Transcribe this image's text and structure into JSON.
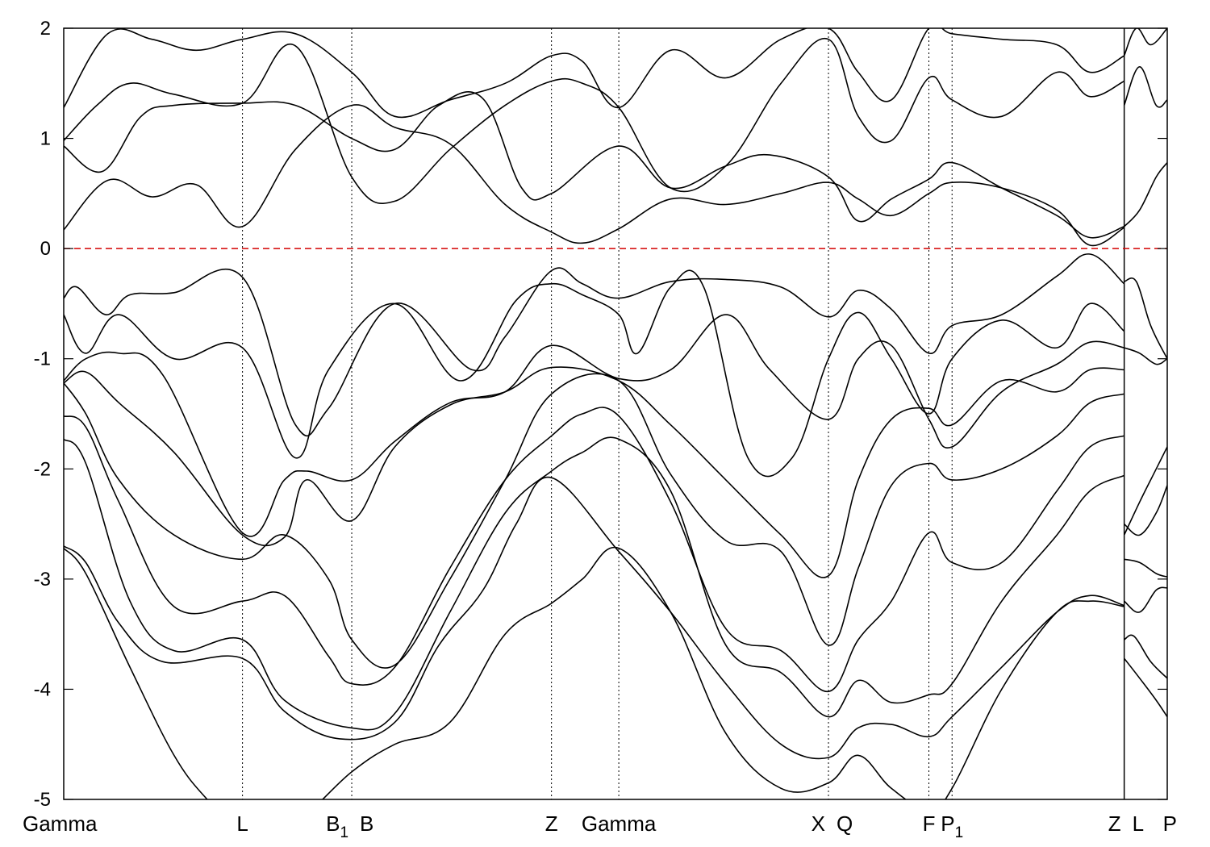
{
  "chart_data": {
    "type": "line",
    "title": "",
    "xlabel": "",
    "ylabel": "",
    "ylim": [
      -5,
      2
    ],
    "yticks": [
      2,
      1,
      0,
      -1,
      -2,
      -3,
      -4,
      -5
    ],
    "grid": false,
    "legend": "none",
    "colors": {
      "bands": "#000000",
      "fermi_level": "#d40000",
      "kpoint_lines": "#000000"
    },
    "kpoints": [
      {
        "label": "Gamma",
        "sub": "",
        "x": 0.0
      },
      {
        "label": "L",
        "sub": "",
        "x": 0.162
      },
      {
        "label": "B",
        "sub": "1",
        "x": 0.261
      },
      {
        "label": "B",
        "sub": "",
        "x": 0.261
      },
      {
        "label": "Z",
        "sub": "",
        "x": 0.442
      },
      {
        "label": "Gamma",
        "sub": "",
        "x": 0.503
      },
      {
        "label": "X",
        "sub": "",
        "x": 0.693
      },
      {
        "label": "Q",
        "sub": "",
        "x": 0.693
      },
      {
        "label": "F",
        "sub": "",
        "x": 0.784
      },
      {
        "label": "P",
        "sub": "1",
        "x": 0.805
      },
      {
        "label": "Z",
        "sub": "",
        "x": 0.961
      },
      {
        "label": "L",
        "sub": "",
        "x": 0.961
      },
      {
        "label": "P",
        "sub": "",
        "x": 1.0
      }
    ],
    "kpath_lines": [
      0.162,
      0.261,
      0.442,
      0.503,
      0.693,
      0.784,
      0.805
    ],
    "discontinuity": 0.961,
    "fermi_level": 0,
    "series": [
      {
        "x": [
          0,
          0.04,
          0.08,
          0.12,
          0.162,
          0.21,
          0.261,
          0.3,
          0.35,
          0.4,
          0.442,
          0.47,
          0.503,
          0.55,
          0.6,
          0.65,
          0.693,
          0.72,
          0.75,
          0.784,
          0.805,
          0.85,
          0.9,
          0.93,
          0.961
        ],
        "y": [
          1.28,
          1.95,
          1.9,
          1.8,
          1.9,
          1.95,
          1.6,
          1.2,
          1.35,
          1.5,
          1.75,
          1.7,
          1.28,
          1.8,
          1.55,
          1.9,
          2.0,
          1.6,
          1.35,
          2.0,
          1.95,
          1.9,
          1.85,
          1.6,
          1.75
        ]
      },
      {
        "x": [
          0,
          0.03,
          0.06,
          0.1,
          0.162,
          0.21,
          0.261,
          0.3,
          0.35,
          0.4,
          0.442,
          0.47,
          0.503,
          0.55,
          0.6,
          0.65,
          0.693,
          0.72,
          0.75,
          0.784,
          0.805,
          0.85,
          0.9,
          0.93,
          0.961
        ],
        "y": [
          0.98,
          1.3,
          1.5,
          1.4,
          1.32,
          1.84,
          0.65,
          0.43,
          0.9,
          1.3,
          1.52,
          1.5,
          1.28,
          0.55,
          0.75,
          1.5,
          1.9,
          1.2,
          0.98,
          1.55,
          1.35,
          1.2,
          1.6,
          1.38,
          1.52
        ]
      },
      {
        "x": [
          0,
          0.035,
          0.07,
          0.1,
          0.162,
          0.21,
          0.261,
          0.3,
          0.34,
          0.38,
          0.415,
          0.442,
          0.503,
          0.55,
          0.6,
          0.64,
          0.693,
          0.72,
          0.75,
          0.784,
          0.805,
          0.85,
          0.9,
          0.93,
          0.961
        ],
        "y": [
          0.93,
          0.7,
          1.2,
          1.3,
          1.32,
          1.3,
          1.0,
          0.9,
          1.3,
          1.36,
          0.55,
          0.5,
          0.93,
          0.55,
          0.75,
          0.85,
          0.65,
          0.25,
          0.45,
          0.63,
          0.78,
          0.55,
          0.3,
          0.1,
          0.2
        ]
      },
      {
        "x": [
          0,
          0.04,
          0.08,
          0.12,
          0.162,
          0.21,
          0.261,
          0.3,
          0.35,
          0.4,
          0.442,
          0.47,
          0.503,
          0.55,
          0.6,
          0.65,
          0.693,
          0.72,
          0.75,
          0.784,
          0.805,
          0.85,
          0.9,
          0.93,
          0.961
        ],
        "y": [
          0.17,
          0.62,
          0.47,
          0.58,
          0.2,
          0.9,
          1.3,
          1.1,
          0.95,
          0.4,
          0.15,
          0.05,
          0.18,
          0.45,
          0.4,
          0.5,
          0.6,
          0.45,
          0.3,
          0.5,
          0.6,
          0.55,
          0.35,
          0.03,
          0.19
        ]
      },
      {
        "x": [
          0,
          0.012,
          0.038,
          0.06,
          0.1,
          0.162,
          0.21,
          0.24,
          0.3,
          0.37,
          0.4,
          0.442,
          0.47,
          0.503,
          0.55,
          0.6,
          0.65,
          0.693,
          0.72,
          0.75,
          0.784,
          0.805,
          0.85,
          0.9,
          0.93,
          0.961
        ],
        "y": [
          -0.45,
          -0.35,
          -0.6,
          -0.42,
          -0.4,
          -0.26,
          -1.6,
          -1.45,
          -0.5,
          -1.1,
          -0.8,
          -0.2,
          -0.32,
          -0.45,
          -0.3,
          -0.28,
          -0.35,
          -0.62,
          -0.38,
          -0.55,
          -0.95,
          -0.7,
          -0.6,
          -0.25,
          -0.05,
          -0.32
        ]
      },
      {
        "x": [
          0,
          0.02,
          0.05,
          0.1,
          0.162,
          0.21,
          0.24,
          0.3,
          0.36,
          0.41,
          0.442,
          0.47,
          0.503,
          0.52,
          0.55,
          0.58,
          0.62,
          0.66,
          0.693,
          0.72,
          0.75,
          0.784,
          0.805,
          0.85,
          0.9,
          0.93,
          0.961
        ],
        "y": [
          -0.6,
          -0.95,
          -0.6,
          -1.0,
          -0.9,
          -1.9,
          -1.1,
          -0.5,
          -1.2,
          -0.47,
          -0.32,
          -0.42,
          -0.6,
          -0.95,
          -0.35,
          -0.35,
          -1.9,
          -1.9,
          -1.0,
          -0.58,
          -1.0,
          -1.5,
          -1.0,
          -0.65,
          -0.9,
          -0.5,
          -0.75
        ]
      },
      {
        "x": [
          0,
          0.02,
          0.05,
          0.09,
          0.162,
          0.2,
          0.22,
          0.261,
          0.3,
          0.35,
          0.4,
          0.442,
          0.503,
          0.55,
          0.6,
          0.64,
          0.693,
          0.72,
          0.75,
          0.784,
          0.805,
          0.85,
          0.9,
          0.93,
          0.961
        ],
        "y": [
          -1.2,
          -1.0,
          -0.95,
          -1.15,
          -2.58,
          -2.1,
          -2.02,
          -2.1,
          -1.75,
          -1.4,
          -1.3,
          -0.88,
          -1.18,
          -1.1,
          -0.6,
          -1.1,
          -1.55,
          -1.0,
          -0.88,
          -1.55,
          -1.8,
          -1.3,
          -1.05,
          -0.85,
          -0.9
        ]
      },
      {
        "x": [
          0,
          0.02,
          0.05,
          0.1,
          0.162,
          0.2,
          0.22,
          0.261,
          0.3,
          0.35,
          0.4,
          0.442,
          0.503,
          0.55,
          0.6,
          0.65,
          0.693,
          0.72,
          0.75,
          0.784,
          0.805,
          0.85,
          0.9,
          0.93,
          0.961
        ],
        "y": [
          -1.22,
          -1.12,
          -1.4,
          -1.85,
          -2.6,
          -2.62,
          -2.1,
          -2.47,
          -1.8,
          -1.42,
          -1.3,
          -1.08,
          -1.2,
          -1.6,
          -2.1,
          -2.6,
          -2.97,
          -2.1,
          -1.55,
          -1.45,
          -1.6,
          -1.2,
          -1.3,
          -1.1,
          -1.1
        ]
      },
      {
        "x": [
          0,
          0.02,
          0.05,
          0.1,
          0.162,
          0.2,
          0.24,
          0.261,
          0.3,
          0.35,
          0.4,
          0.442,
          0.503,
          0.55,
          0.6,
          0.65,
          0.693,
          0.72,
          0.75,
          0.784,
          0.805,
          0.85,
          0.9,
          0.93,
          0.961
        ],
        "y": [
          -1.22,
          -1.5,
          -2.1,
          -2.6,
          -2.82,
          -2.6,
          -3.0,
          -3.55,
          -3.78,
          -3.0,
          -2.1,
          -1.32,
          -1.2,
          -2.05,
          -2.65,
          -2.75,
          -3.6,
          -2.9,
          -2.15,
          -1.95,
          -2.1,
          -2.0,
          -1.7,
          -1.4,
          -1.32
        ]
      },
      {
        "x": [
          0,
          0.02,
          0.05,
          0.1,
          0.162,
          0.2,
          0.24,
          0.261,
          0.3,
          0.35,
          0.4,
          0.442,
          0.47,
          0.503,
          0.55,
          0.6,
          0.65,
          0.693,
          0.72,
          0.75,
          0.784,
          0.805,
          0.85,
          0.9,
          0.93,
          0.961
        ],
        "y": [
          -1.52,
          -1.62,
          -2.3,
          -3.25,
          -3.2,
          -3.15,
          -3.7,
          -3.95,
          -3.8,
          -2.9,
          -2.1,
          -1.7,
          -1.5,
          -1.52,
          -2.3,
          -3.45,
          -3.65,
          -4.02,
          -3.55,
          -3.2,
          -2.58,
          -2.85,
          -2.85,
          -2.2,
          -1.8,
          -1.7
        ]
      },
      {
        "x": [
          0,
          0.02,
          0.06,
          0.1,
          0.162,
          0.2,
          0.26,
          0.3,
          0.35,
          0.4,
          0.442,
          0.47,
          0.503,
          0.55,
          0.6,
          0.65,
          0.693,
          0.72,
          0.75,
          0.784,
          0.805,
          0.85,
          0.9,
          0.93,
          0.961
        ],
        "y": [
          -1.73,
          -1.95,
          -3.2,
          -3.65,
          -3.55,
          -4.1,
          -4.35,
          -4.22,
          -3.3,
          -2.4,
          -2.02,
          -1.85,
          -1.73,
          -2.2,
          -3.6,
          -3.85,
          -4.25,
          -3.92,
          -4.12,
          -4.05,
          -3.95,
          -3.2,
          -2.6,
          -2.2,
          -2.06
        ]
      },
      {
        "x": [
          0,
          0.02,
          0.05,
          0.09,
          0.162,
          0.2,
          0.25,
          0.3,
          0.34,
          0.38,
          0.41,
          0.442,
          0.503,
          0.55,
          0.6,
          0.65,
          0.693,
          0.72,
          0.75,
          0.784,
          0.805,
          0.85,
          0.9,
          0.93,
          0.961
        ],
        "y": [
          -2.7,
          -2.85,
          -3.4,
          -3.75,
          -3.72,
          -4.2,
          -4.45,
          -4.3,
          -3.6,
          -3.1,
          -2.5,
          -2.08,
          -2.75,
          -3.3,
          -3.95,
          -4.5,
          -4.62,
          -4.35,
          -4.32,
          -4.43,
          -4.25,
          -3.8,
          -3.3,
          -3.15,
          -3.24
        ]
      },
      {
        "x": [
          0,
          0.02,
          0.06,
          0.1,
          0.13,
          0.162,
          0.21,
          0.261,
          0.3,
          0.35,
          0.4,
          0.442,
          0.47,
          0.503,
          0.55,
          0.6,
          0.65,
          0.693,
          0.72,
          0.75,
          0.784,
          0.805,
          0.85,
          0.9,
          0.93,
          0.961
        ],
        "y": [
          -2.72,
          -2.95,
          -3.8,
          -4.6,
          -5.0,
          -5.3,
          -5.2,
          -4.75,
          -4.5,
          -4.3,
          -3.5,
          -3.22,
          -3.0,
          -2.72,
          -3.3,
          -4.4,
          -4.9,
          -4.85,
          -4.6,
          -4.9,
          -5.1,
          -4.9,
          -4.0,
          -3.3,
          -3.2,
          -3.25
        ]
      },
      {
        "x": [
          0.961,
          0.975,
          0.99,
          1.0
        ],
        "y": [
          1.3,
          1.65,
          1.3,
          1.35
        ]
      },
      {
        "x": [
          0.961,
          0.972,
          0.985,
          1.0
        ],
        "y": [
          1.75,
          2.0,
          1.85,
          2.0
        ]
      },
      {
        "x": [
          0.961,
          0.975,
          0.99,
          1.0
        ],
        "y": [
          0.2,
          0.35,
          0.65,
          0.78
        ]
      },
      {
        "x": [
          0.961,
          0.972,
          0.985,
          1.0
        ],
        "y": [
          -0.3,
          -0.3,
          -0.7,
          -1.0
        ]
      },
      {
        "x": [
          0.961,
          0.975,
          0.99,
          1.0
        ],
        "y": [
          -0.9,
          -0.95,
          -1.05,
          -1.0
        ]
      },
      {
        "x": [
          0.961,
          0.975,
          0.99,
          1.0
        ],
        "y": [
          -2.6,
          -2.3,
          -2.0,
          -1.8
        ]
      },
      {
        "x": [
          0.961,
          0.975,
          0.99,
          1.0
        ],
        "y": [
          -2.5,
          -2.6,
          -2.4,
          -2.15
        ]
      },
      {
        "x": [
          0.961,
          0.975,
          0.99,
          1.0
        ],
        "y": [
          -2.82,
          -2.85,
          -2.95,
          -2.98
        ]
      },
      {
        "x": [
          0.961,
          0.975,
          0.99,
          1.0
        ],
        "y": [
          -3.2,
          -3.3,
          -3.1,
          -3.08
        ]
      },
      {
        "x": [
          0.961,
          0.97,
          0.985,
          1.0
        ],
        "y": [
          -3.55,
          -3.52,
          -3.75,
          -3.9
        ]
      },
      {
        "x": [
          0.961,
          0.975,
          0.99,
          1.0
        ],
        "y": [
          -3.72,
          -3.9,
          -4.1,
          -4.25
        ]
      }
    ]
  }
}
